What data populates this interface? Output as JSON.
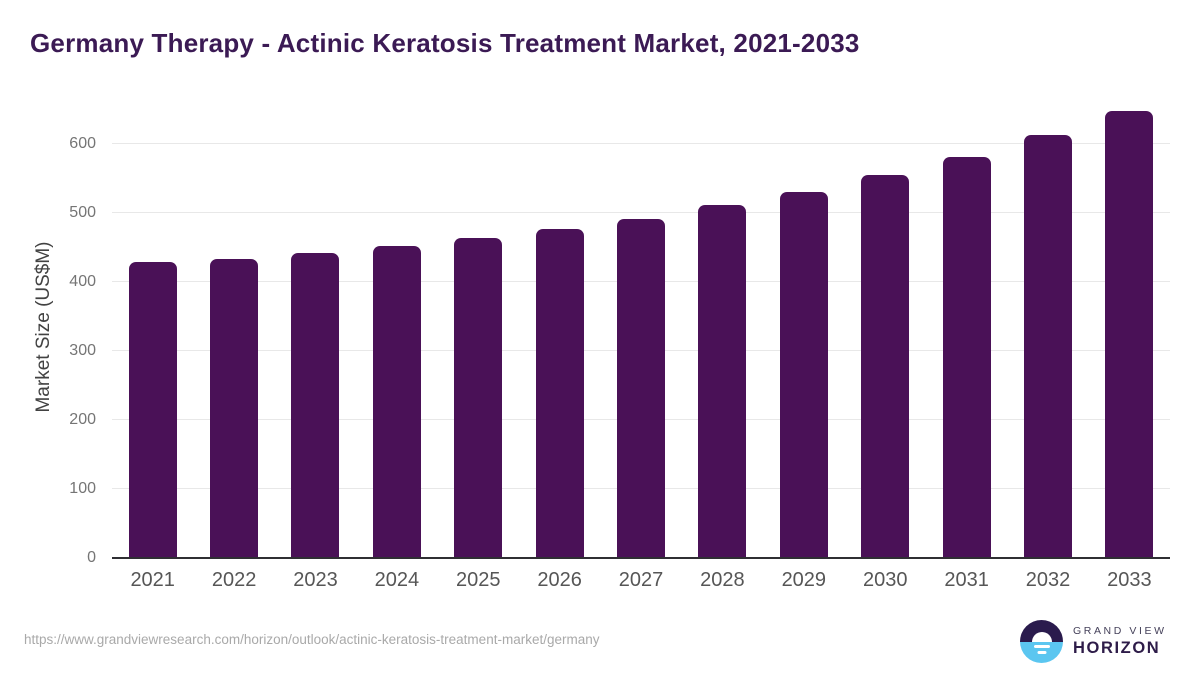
{
  "title": "Germany Therapy - Actinic Keratosis Treatment Market, 2021-2033",
  "footer": {
    "source_url": "https://www.grandviewresearch.com/horizon/outlook/actinic-keratosis-treatment-market/germany"
  },
  "logo": {
    "name": "grand-view-horizon-logo",
    "top_text": "GRAND VIEW",
    "bottom_text": "HORIZON"
  },
  "colors": {
    "bar": "#4a1157",
    "title": "#3b1a54",
    "gridline": "#e8e8e8",
    "axis_line": "#2f2f33",
    "y_tick": "#757575",
    "x_tick": "#565656",
    "url_text": "#a9a9a9",
    "logo_dark": "#2a1b4d",
    "logo_blue": "#5bc6f0"
  },
  "chart_data": {
    "type": "bar",
    "title": "Germany Therapy - Actinic Keratosis Treatment Market, 2021-2033",
    "categories": [
      "2021",
      "2022",
      "2023",
      "2024",
      "2025",
      "2026",
      "2027",
      "2028",
      "2029",
      "2030",
      "2031",
      "2032",
      "2033"
    ],
    "values": [
      429,
      433,
      442,
      452,
      464,
      477,
      492,
      512,
      531,
      555,
      582,
      613,
      648
    ],
    "xlabel": "",
    "ylabel": "Market Size (US$M)",
    "ylim": [
      0,
      670
    ],
    "yticks": [
      0,
      100,
      200,
      300,
      400,
      500,
      600
    ],
    "grid": true,
    "legend": false,
    "bar_color": "#4a1157"
  }
}
